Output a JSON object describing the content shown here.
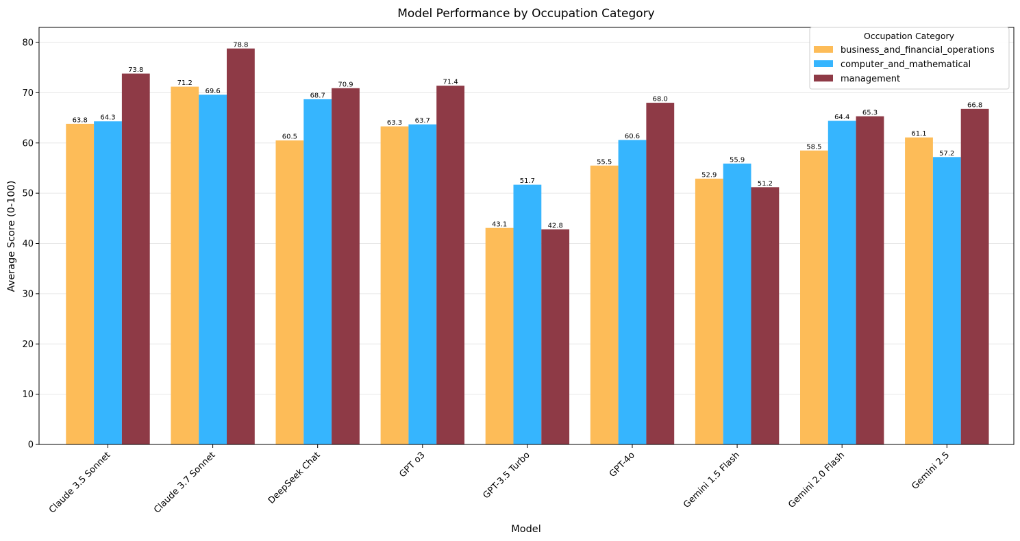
{
  "chart_data": {
    "type": "bar",
    "title": "Model Performance by Occupation Category",
    "xlabel": "Model",
    "ylabel": "Average Score (0-100)",
    "ylim": [
      0,
      83
    ],
    "yticks": [
      0,
      10,
      20,
      30,
      40,
      50,
      60,
      70,
      80
    ],
    "grid": "y",
    "categories": [
      "Claude 3.5 Sonnet",
      "Claude 3.7 Sonnet",
      "DeepSeek Chat",
      "GPT o3",
      "GPT-3.5 Turbo",
      "GPT-4o",
      "Gemini 1.5 Flash",
      "Gemini 2.0 Flash",
      "Gemini 2.5"
    ],
    "series": [
      {
        "name": "business_and_financial_operations",
        "color": "#FDBC58",
        "values": [
          63.8,
          71.2,
          60.5,
          63.3,
          43.1,
          55.5,
          52.9,
          58.5,
          61.1
        ]
      },
      {
        "name": "computer_and_mathematical",
        "color": "#36B5FE",
        "values": [
          64.3,
          69.6,
          68.7,
          63.7,
          51.7,
          60.6,
          55.9,
          64.4,
          57.2
        ]
      },
      {
        "name": "management",
        "color": "#8E3A46",
        "values": [
          73.8,
          78.8,
          70.9,
          71.4,
          42.8,
          68.0,
          51.2,
          65.3,
          66.8
        ]
      }
    ],
    "legend": {
      "title": "Occupation Category",
      "placement": "top-right"
    }
  }
}
